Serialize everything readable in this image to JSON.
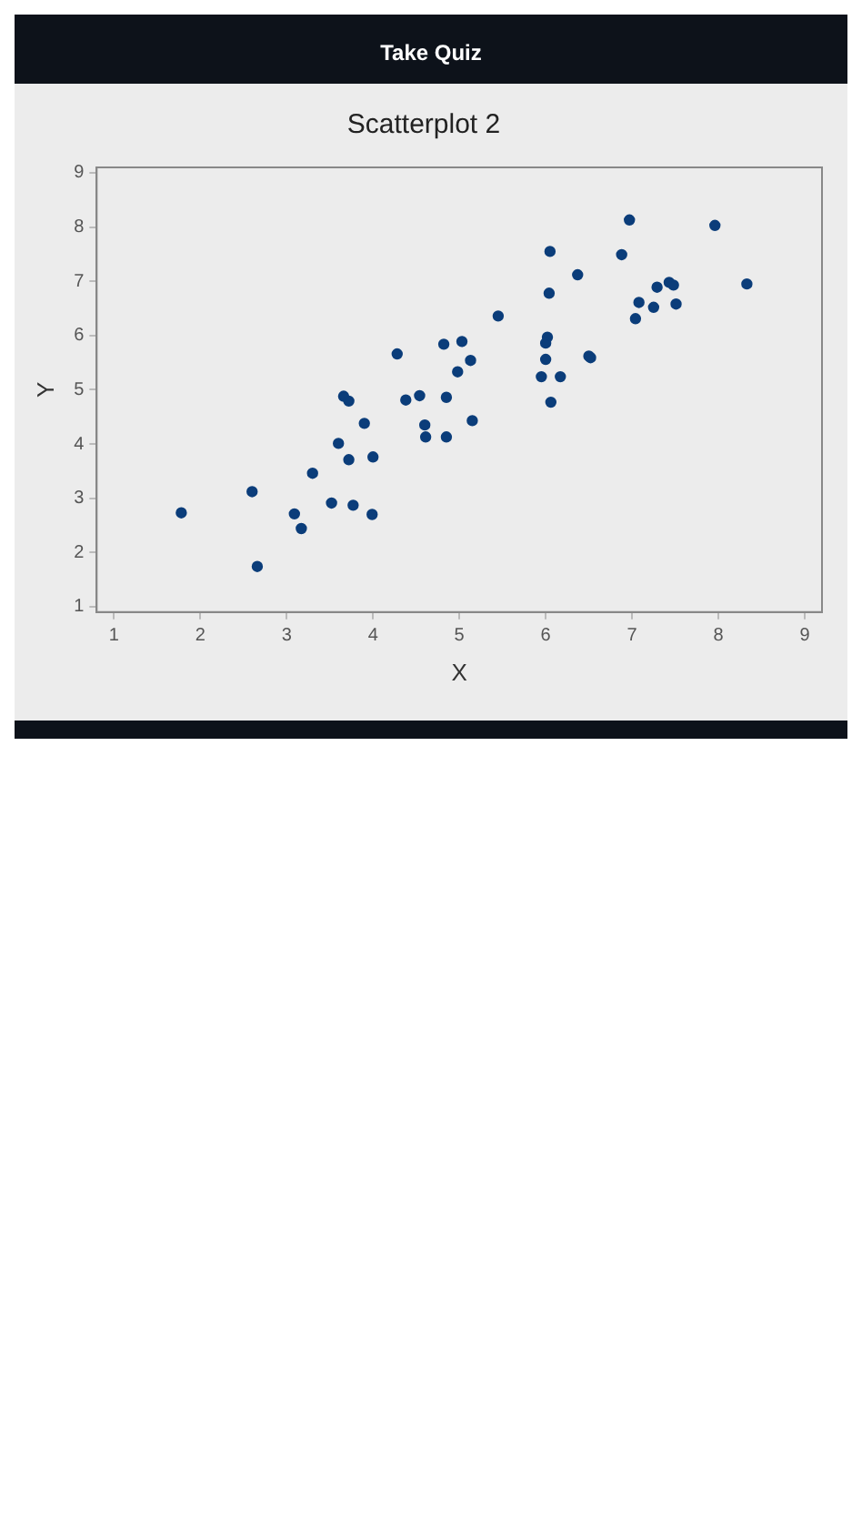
{
  "chart_data": {
    "type": "scatter",
    "title": "Scatterplot 2",
    "xlabel": "X",
    "ylabel": "Y",
    "annotations": [
      "Take Quiz"
    ],
    "x": [
      1.78,
      2.6,
      2.66,
      3.09,
      3.17,
      3.3,
      3.52,
      3.77,
      3.99,
      3.6,
      3.72,
      4.0,
      3.9,
      3.66,
      3.72,
      4.28,
      4.38,
      4.54,
      4.6,
      4.61,
      4.85,
      4.85,
      4.82,
      5.03,
      4.98,
      5.13,
      5.15,
      5.45,
      6.05,
      6.04,
      6.37,
      6.02,
      6.0,
      6.0,
      5.95,
      6.17,
      6.06,
      6.5,
      6.52,
      6.88,
      6.97,
      7.08,
      7.04,
      7.25,
      7.29,
      7.43,
      7.48,
      7.51,
      7.96,
      8.33
    ],
    "series": [
      {
        "color": "#0b3d7a",
        "values": [
          2.73,
          3.12,
          1.74,
          2.71,
          2.44,
          3.46,
          2.91,
          2.87,
          2.7,
          4.01,
          3.71,
          3.76,
          4.38,
          4.88,
          4.79,
          5.66,
          4.81,
          4.89,
          4.35,
          4.13,
          4.86,
          4.13,
          5.84,
          5.89,
          5.33,
          5.54,
          4.43,
          6.36,
          7.55,
          6.78,
          7.12,
          5.97,
          5.86,
          5.56,
          5.24,
          5.24,
          4.77,
          5.62,
          5.59,
          7.49,
          8.13,
          6.61,
          6.31,
          6.52,
          6.89,
          6.98,
          6.93,
          6.58,
          8.03,
          6.95
        ]
      }
    ],
    "xlim": [
      0.8,
      9.2
    ],
    "xticks": [
      1,
      2,
      3,
      4,
      5,
      6,
      7,
      8,
      9
    ],
    "ylim": [
      0.9,
      9.1
    ],
    "yticks": [
      1,
      2,
      3,
      4,
      5,
      6,
      7,
      8,
      9
    ],
    "grid": false,
    "legend": false,
    "marker": "circle"
  }
}
